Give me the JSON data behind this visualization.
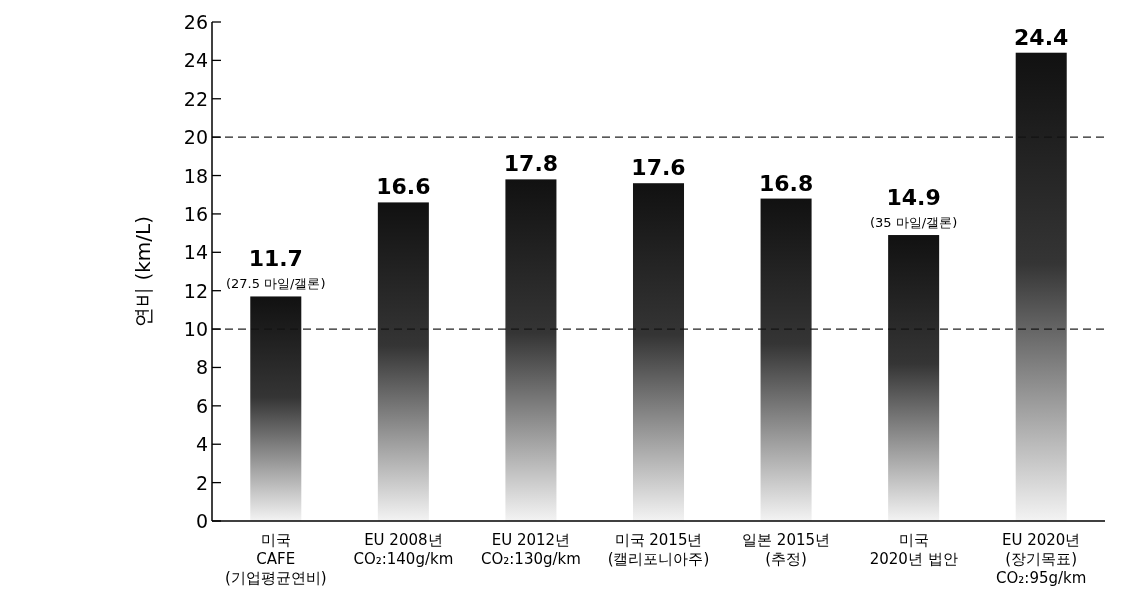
{
  "chart_data": {
    "type": "bar",
    "ylabel": "연비  (km/L)",
    "categories": [
      "미국\nCAFE\n(기업평균연비)",
      "EU 2008년\nCO₂:140g/km",
      "EU 2012년\nCO₂:130g/km",
      "미국 2015년\n(캘리포니아주)",
      "일본 2015년\n(추정)",
      "미국\n2020년 법안",
      "EU 2020년\n(장기목표)\nCO₂:95g/km"
    ],
    "values": [
      11.7,
      16.6,
      17.8,
      17.6,
      16.8,
      14.9,
      24.4
    ],
    "color": "#111111",
    "data_labels": true,
    "ylim": [
      0,
      26
    ],
    "yticks": [
      0,
      2,
      4,
      6,
      8,
      10,
      12,
      14,
      16,
      18,
      20,
      22,
      24,
      26
    ],
    "ref_lines": [
      {
        "axis": "y",
        "value": 10,
        "line_style": "dashed",
        "color": "#222222"
      },
      {
        "axis": "y",
        "value": 20,
        "line_style": "dashed",
        "color": "#222222"
      }
    ],
    "annotations": [
      {
        "text": "(27.5 마일/갤론)",
        "x": "미국\nCAFE\n(기업평균연비)",
        "y": 11.7
      },
      {
        "text": "(35 마일/갤론)",
        "x": "미국\n2020년 법안",
        "y": 14.9
      }
    ],
    "grid": false
  }
}
